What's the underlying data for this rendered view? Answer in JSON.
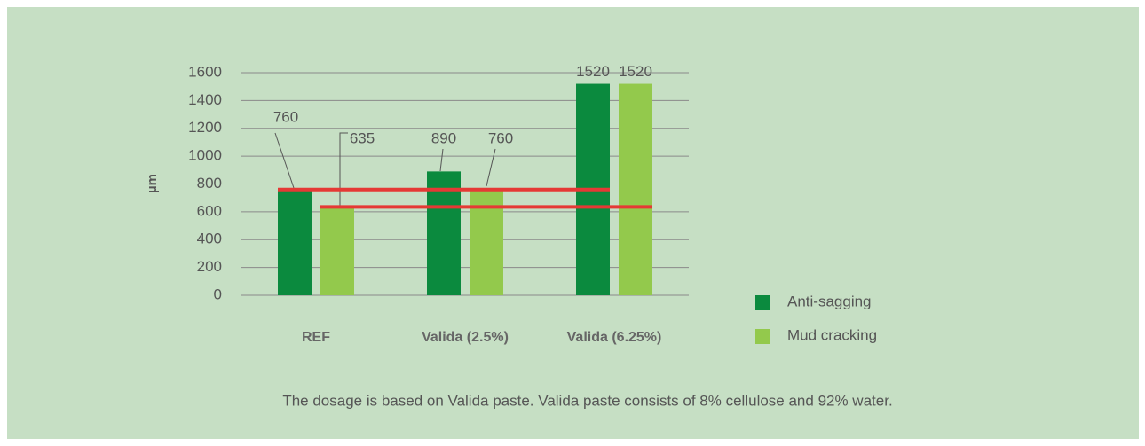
{
  "chart_data": {
    "type": "bar",
    "y_label": "µm",
    "categories": [
      "REF",
      "Valida (2.5%)",
      "Valida (6.25%)"
    ],
    "series": [
      {
        "name": "Anti-sagging",
        "color": "#0b8a3e",
        "values": [
          760,
          890,
          1520
        ]
      },
      {
        "name": "Mud cracking",
        "color": "#93c94c",
        "values": [
          635,
          760,
          1520
        ]
      }
    ],
    "reference_lines": [
      760,
      635
    ],
    "reference_color": "#e53935",
    "ylim": [
      0,
      1600
    ],
    "yticks": [
      0,
      200,
      400,
      600,
      800,
      1000,
      1200,
      1400,
      1600
    ],
    "grid": true,
    "legend": "right",
    "caption": "The dosage is based on Valida paste. Valida paste consists of 8% cellulose and 92% water."
  }
}
